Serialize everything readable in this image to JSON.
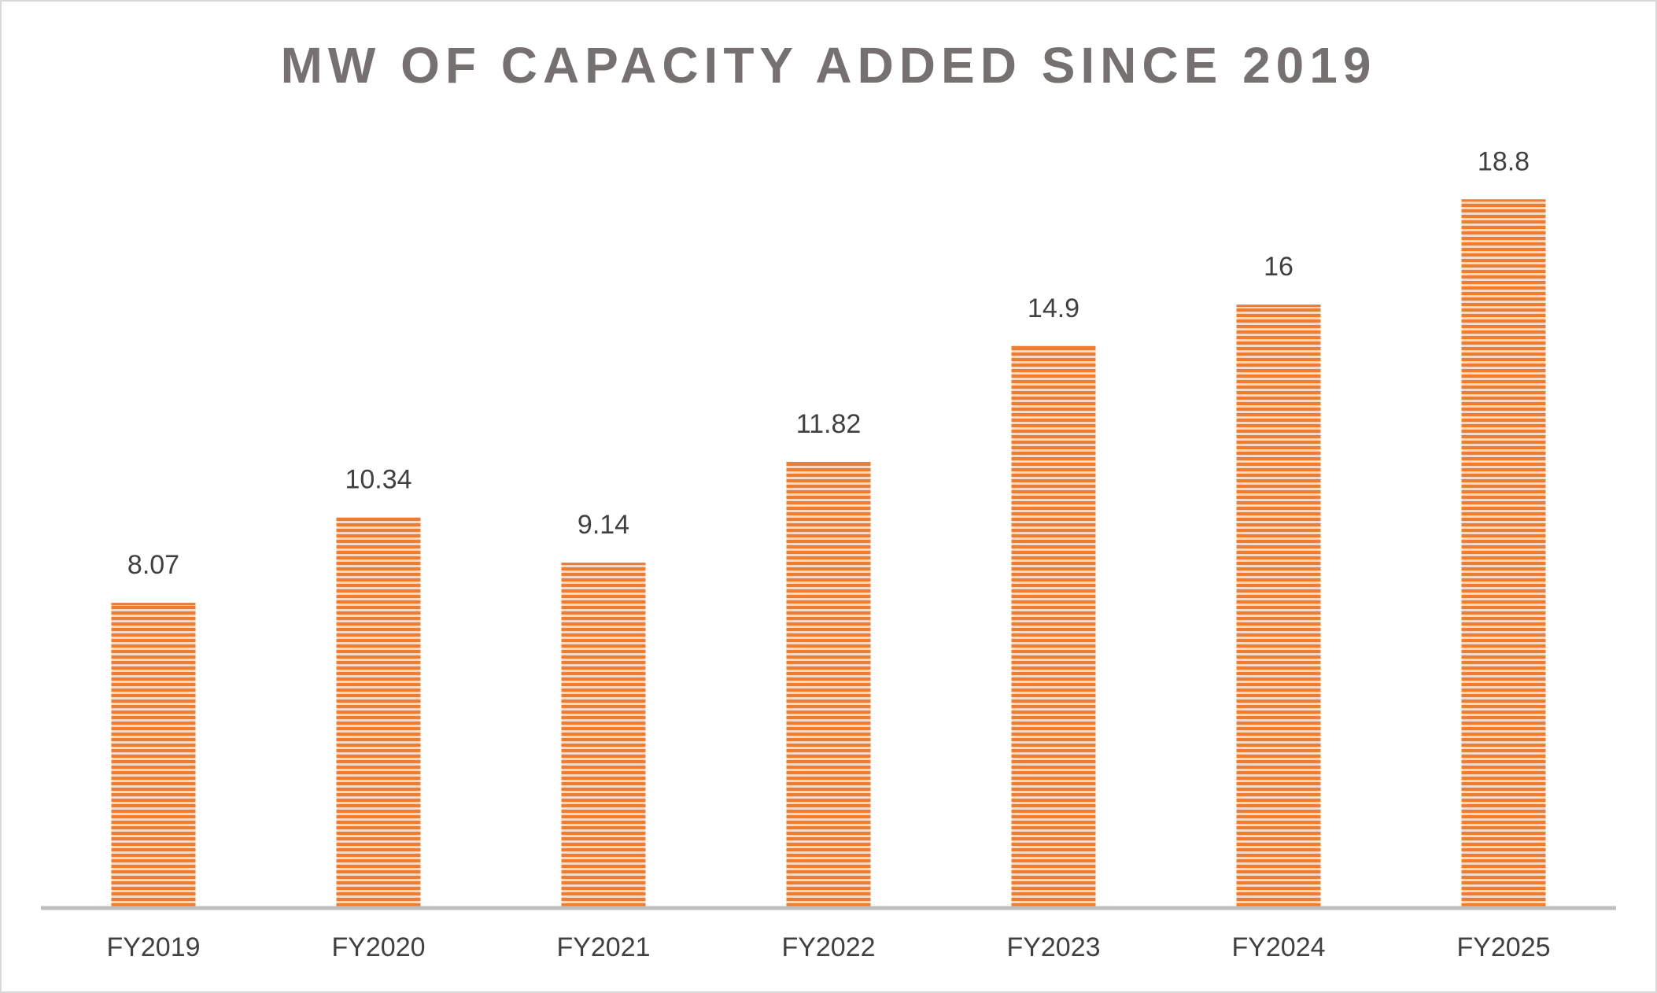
{
  "chart_data": {
    "type": "bar",
    "title": "MW OF CAPACITY ADDED SINCE 2019",
    "categories": [
      "FY2019",
      "FY2020",
      "FY2021",
      "FY2022",
      "FY2023",
      "FY2024",
      "FY2025"
    ],
    "values": [
      8.07,
      10.34,
      9.14,
      11.82,
      14.9,
      16,
      18.8
    ],
    "color": "#ed7d31"
  }
}
